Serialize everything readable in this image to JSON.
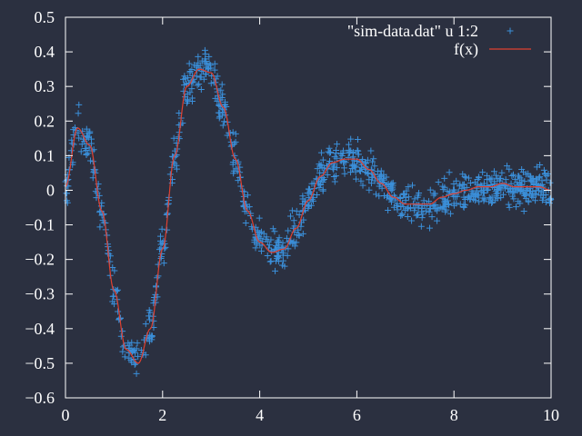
{
  "chart_data": {
    "type": "scatter",
    "title": "",
    "xlabel": "",
    "ylabel": "",
    "xlim": [
      0,
      10
    ],
    "ylim": [
      -0.6,
      0.5
    ],
    "xticks": [
      0,
      2,
      4,
      6,
      8,
      10
    ],
    "yticks": [
      -0.6,
      -0.5,
      -0.4,
      -0.3,
      -0.2,
      -0.1,
      0,
      0.1,
      0.2,
      0.3,
      0.4,
      0.5
    ],
    "xtick_labels": [
      "0",
      "2",
      "4",
      "6",
      "8",
      "10"
    ],
    "ytick_labels": [
      "−0.6",
      "−0.5",
      "−0.4",
      "−0.3",
      "−0.2",
      "−0.1",
      "0",
      "0.1",
      "0.2",
      "0.3",
      "0.4",
      "0.5"
    ],
    "grid": false,
    "legend_position": "top-right",
    "background_color": "#2b3040",
    "axis_color": "#ffffff",
    "series": [
      {
        "name": "\"sim-data.dat\" u 1:2",
        "kind": "points",
        "marker": "plus",
        "color": "#3b8fd9",
        "x_range": [
          0,
          10
        ],
        "count": 1000,
        "noise_amplitude": 0.05
      },
      {
        "name": "f(x)",
        "kind": "line",
        "color": "#e04030",
        "x": [
          0,
          0.25,
          0.5,
          0.75,
          1,
          1.25,
          1.5,
          1.75,
          2,
          2.25,
          2.5,
          2.75,
          3,
          3.25,
          3.5,
          3.75,
          4,
          4.25,
          4.5,
          4.75,
          5,
          5.25,
          5.5,
          5.75,
          6,
          6.25,
          6.5,
          6.75,
          7,
          7.25,
          7.5,
          7.75,
          8,
          8.25,
          8.5,
          8.75,
          9,
          9.25,
          9.5,
          9.75,
          10
        ],
        "y": [
          0.01,
          0.18,
          0.13,
          -0.06,
          -0.29,
          -0.46,
          -0.5,
          -0.4,
          -0.17,
          0.1,
          0.3,
          0.35,
          0.34,
          0.24,
          0.09,
          -0.06,
          -0.15,
          -0.18,
          -0.17,
          -0.11,
          -0.03,
          0.04,
          0.08,
          0.09,
          0.09,
          0.06,
          0.02,
          -0.02,
          -0.04,
          -0.04,
          -0.04,
          -0.02,
          -0.01,
          0.0,
          0.01,
          0.01,
          0.02,
          0.01,
          0.01,
          0.01,
          0.0
        ]
      }
    ]
  }
}
